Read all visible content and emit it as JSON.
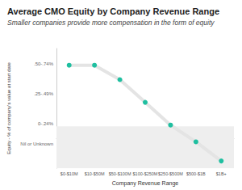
{
  "chart_data": {
    "type": "line",
    "title": "Average CMO Equity by Company Revenue Range",
    "subtitle": "Smaller companies provide more compensation in the form of equity",
    "x_label": "Company Revenue Range",
    "y_label": "Equity - % of company's value at start date",
    "categories": [
      "$0-$10M",
      "$10-$50M",
      "$50-$100M",
      "$100-$250M",
      "$250-$500M",
      "$500-$1B",
      "$1B+"
    ],
    "values": [
      0.61,
      0.61,
      0.49,
      0.3,
      0.11,
      -0.03,
      -0.19
    ],
    "color": "#1fbfa0",
    "marker": "circle",
    "ylim": [
      -0.25,
      0.75
    ],
    "yticks": [
      {
        "value": -0.05,
        "label": "Nil or Unknown"
      },
      {
        "value": 0.12,
        "label": "0-.24%"
      },
      {
        "value": 0.37,
        "label": ".25-.49%"
      },
      {
        "value": 0.62,
        "label": ".50-.74%"
      }
    ],
    "bands": [
      {
        "from": -0.25,
        "to": 0.1
      }
    ],
    "grid": false
  }
}
